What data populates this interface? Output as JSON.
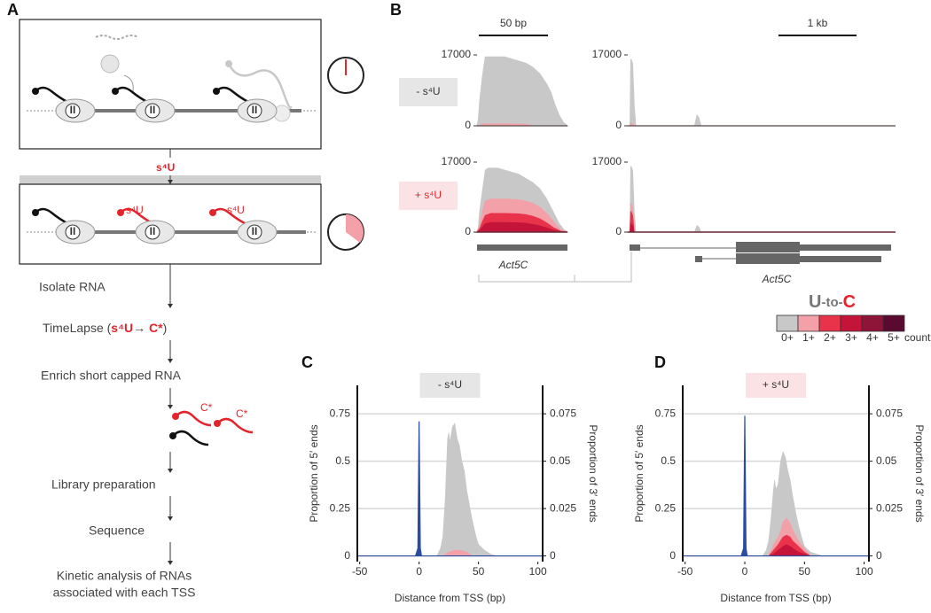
{
  "panel_labels": [
    "A",
    "B",
    "C",
    "D"
  ],
  "workflow": {
    "pol_label": "II",
    "treatment": "s⁴U",
    "new_rna_label": "s⁴U",
    "steps": [
      "Isolate RNA",
      "Enrich short capped RNA",
      "Library preparation",
      "Sequence"
    ],
    "timelapse": {
      "name": "TimeLapse (",
      "reactant": "s⁴U",
      "arrow": "→ ",
      "product": "C*",
      "close": ")"
    },
    "converted_label": "C*",
    "final_step": [
      "Kinetic analysis of RNAs",
      "associated with each TSS"
    ]
  },
  "browser": {
    "scale_bars": [
      "50 bp",
      "1 kb"
    ],
    "conditions": [
      "- s⁴U",
      "+ s⁴U"
    ],
    "gene": "Act5C",
    "legend": {
      "title_parts": [
        "U",
        "-to-",
        "C"
      ],
      "labels": [
        "0+",
        "1+",
        "2+",
        "3+",
        "4+",
        "5+"
      ],
      "colors": [
        "#c8c8c8",
        "#f4a0a8",
        "#e8334a",
        "#c4143a",
        "#8e1537",
        "#5a0a2e"
      ],
      "unit": "count"
    }
  },
  "chart_data": [
    {
      "type": "area",
      "xlim": [
        0,
        65
      ],
      "ylim": [
        0,
        17000
      ],
      "yticks": [
        0,
        17000
      ],
      "series": [
        {
          "color": "#c8c8c8",
          "x": [
            0,
            1,
            2,
            4,
            6,
            8,
            10,
            15,
            20,
            25,
            30,
            35,
            40,
            45,
            50,
            53,
            56,
            59,
            62,
            65
          ],
          "values": [
            0,
            1500,
            6000,
            12000,
            16500,
            16500,
            16500,
            16500,
            16500,
            16000,
            15500,
            15000,
            14000,
            12500,
            10000,
            8000,
            5000,
            2500,
            800,
            0
          ]
        },
        {
          "color": "#f4a0a8",
          "x": [
            0,
            2,
            4,
            30,
            35,
            40,
            65
          ],
          "values": [
            0,
            0,
            400,
            400,
            300,
            0,
            0
          ]
        }
      ]
    },
    {
      "type": "area",
      "xlim": [
        0,
        3.4
      ],
      "ylim": [
        0,
        17000
      ],
      "yticks": [
        0,
        17000
      ],
      "series": [
        {
          "color": "#c8c8c8",
          "x": [
            0,
            0.03,
            0.04,
            0.06,
            0.08,
            0.1,
            0.85,
            0.88,
            0.9,
            0.93,
            3.4
          ],
          "values": [
            0,
            0,
            16000,
            15000,
            5000,
            0,
            0,
            2500,
            2000,
            0,
            0
          ]
        },
        {
          "color": "#f4a0a8",
          "x": [
            0,
            0.03,
            0.04,
            0.06,
            0.08,
            3.4
          ],
          "values": [
            0,
            0,
            600,
            400,
            0,
            0
          ]
        }
      ]
    },
    {
      "type": "area",
      "xlim": [
        0,
        65
      ],
      "ylim": [
        0,
        17000
      ],
      "yticks": [
        0,
        17000
      ],
      "series": [
        {
          "color": "#c8c8c8",
          "x": [
            0,
            1,
            2,
            4,
            6,
            8,
            10,
            15,
            20,
            25,
            30,
            35,
            40,
            45,
            50,
            53,
            56,
            59,
            62,
            65
          ],
          "values": [
            0,
            1000,
            5000,
            10000,
            15000,
            15500,
            15500,
            15500,
            15000,
            14500,
            14000,
            13000,
            12000,
            10500,
            8000,
            6000,
            4000,
            2000,
            700,
            0
          ]
        },
        {
          "color": "#f4a0a8",
          "x": [
            0,
            2,
            4,
            6,
            10,
            20,
            30,
            35,
            40,
            45,
            50,
            55,
            60,
            65
          ],
          "values": [
            0,
            1500,
            5000,
            7500,
            8000,
            8000,
            7800,
            7500,
            7000,
            6000,
            4500,
            2500,
            500,
            0
          ]
        },
        {
          "color": "#e8334a",
          "x": [
            0,
            2,
            4,
            6,
            10,
            20,
            30,
            35,
            40,
            45,
            50,
            55,
            60,
            65
          ],
          "values": [
            0,
            800,
            2500,
            4000,
            4500,
            4500,
            4400,
            4200,
            3800,
            3200,
            2200,
            1000,
            200,
            0
          ]
        },
        {
          "color": "#c4143a",
          "x": [
            0,
            2,
            4,
            6,
            10,
            20,
            30,
            35,
            40,
            45,
            50,
            55,
            60,
            65
          ],
          "values": [
            0,
            400,
            1200,
            2000,
            2300,
            2300,
            2200,
            2100,
            1800,
            1500,
            1000,
            400,
            100,
            0
          ]
        }
      ]
    },
    {
      "type": "area",
      "xlim": [
        0,
        3.4
      ],
      "ylim": [
        0,
        17000
      ],
      "yticks": [
        0,
        17000
      ],
      "series": [
        {
          "color": "#c8c8c8",
          "x": [
            0,
            0.03,
            0.04,
            0.06,
            0.08,
            0.1,
            0.85,
            0.88,
            0.9,
            0.93,
            3.4
          ],
          "values": [
            0,
            0,
            16000,
            15000,
            5000,
            0,
            0,
            1500,
            1200,
            0,
            0
          ]
        },
        {
          "color": "#f4a0a8",
          "x": [
            0,
            0.03,
            0.04,
            0.06,
            0.08,
            3.4
          ],
          "values": [
            0,
            0,
            7000,
            6000,
            0,
            0
          ]
        },
        {
          "color": "#e8334a",
          "x": [
            0,
            0.03,
            0.04,
            0.06,
            0.08,
            3.4
          ],
          "values": [
            0,
            0,
            5000,
            4000,
            0,
            0
          ]
        },
        {
          "color": "#c4143a",
          "x": [
            0,
            0.03,
            0.04,
            0.06,
            0.08,
            3.4
          ],
          "values": [
            0,
            0,
            2000,
            1500,
            0,
            0
          ]
        }
      ]
    },
    {
      "type": "area",
      "title": "- s⁴U",
      "xlabel": "Distance from TSS (bp)",
      "ylabel": "Proportion of 5′ ends",
      "y2label": "Proportion of 3′ ends",
      "xlim": [
        -52,
        104
      ],
      "xticks": [
        -50,
        0,
        50,
        100
      ],
      "ylim": [
        -0.03,
        0.9
      ],
      "yticks": [
        0,
        0.25,
        0.5,
        0.75
      ],
      "y2lim": [
        -0.003,
        0.09
      ],
      "y2ticks": [
        0,
        0.025,
        0.05,
        0.075
      ],
      "grid": true,
      "series": [
        {
          "color": "#c8c8c8",
          "axis": "y2",
          "x": [
            -52,
            15,
            18,
            20,
            22,
            24,
            25,
            26,
            28,
            30,
            32,
            34,
            36,
            38,
            40,
            42,
            45,
            48,
            50,
            55,
            60,
            65,
            104
          ],
          "values": [
            0,
            0,
            0.004,
            0.01,
            0.03,
            0.062,
            0.065,
            0.06,
            0.068,
            0.07,
            0.062,
            0.058,
            0.05,
            0.045,
            0.035,
            0.028,
            0.018,
            0.01,
            0.006,
            0.003,
            0.001,
            0,
            0
          ]
        },
        {
          "color": "#f4a0a8",
          "axis": "y2",
          "x": [
            -52,
            20,
            25,
            30,
            35,
            40,
            45,
            104
          ],
          "values": [
            0,
            0,
            0.002,
            0.003,
            0.003,
            0.002,
            0,
            0
          ]
        },
        {
          "color": "#2b4ca0",
          "x": [
            -52,
            -3,
            -1,
            0,
            1,
            2,
            104
          ],
          "values": [
            0,
            0,
            0.04,
            0.71,
            0.04,
            0,
            0
          ]
        }
      ]
    },
    {
      "type": "area",
      "title": "+ s⁴U",
      "xlabel": "Distance from TSS (bp)",
      "ylabel": "Proportion of 5′ ends",
      "y2label": "Proportion of 3′ ends",
      "xlim": [
        -52,
        104
      ],
      "xticks": [
        -50,
        0,
        50,
        100
      ],
      "ylim": [
        -0.03,
        0.9
      ],
      "yticks": [
        0,
        0.25,
        0.5,
        0.75
      ],
      "y2lim": [
        -0.003,
        0.09
      ],
      "y2ticks": [
        0,
        0.025,
        0.05,
        0.075
      ],
      "grid": true,
      "series": [
        {
          "color": "#c8c8c8",
          "axis": "y2",
          "x": [
            -52,
            15,
            18,
            20,
            22,
            24,
            25,
            26,
            28,
            30,
            32,
            34,
            36,
            38,
            40,
            42,
            45,
            48,
            50,
            55,
            60,
            65,
            104
          ],
          "values": [
            0,
            0,
            0.003,
            0.008,
            0.02,
            0.035,
            0.04,
            0.035,
            0.038,
            0.05,
            0.055,
            0.052,
            0.045,
            0.04,
            0.032,
            0.025,
            0.016,
            0.009,
            0.005,
            0.002,
            0.001,
            0,
            0
          ]
        },
        {
          "color": "#f4a0a8",
          "axis": "y2",
          "x": [
            -52,
            20,
            24,
            28,
            30,
            32,
            35,
            38,
            40,
            45,
            50,
            55,
            104
          ],
          "values": [
            0,
            0,
            0.006,
            0.01,
            0.013,
            0.018,
            0.02,
            0.017,
            0.014,
            0.008,
            0.004,
            0,
            0
          ]
        },
        {
          "color": "#e8334a",
          "axis": "y2",
          "x": [
            -52,
            20,
            24,
            28,
            30,
            32,
            35,
            38,
            40,
            45,
            50,
            55,
            104
          ],
          "values": [
            0,
            0,
            0.003,
            0.006,
            0.008,
            0.01,
            0.011,
            0.01,
            0.008,
            0.005,
            0.002,
            0,
            0
          ]
        },
        {
          "color": "#c4143a",
          "axis": "y2",
          "x": [
            -52,
            20,
            24,
            28,
            30,
            32,
            35,
            38,
            40,
            45,
            50,
            55,
            104
          ],
          "values": [
            0,
            0,
            0.001,
            0.003,
            0.004,
            0.005,
            0.006,
            0.005,
            0.004,
            0.002,
            0.001,
            0,
            0
          ]
        },
        {
          "color": "#2b4ca0",
          "x": [
            -52,
            -3,
            -1,
            0,
            1,
            2,
            104
          ],
          "values": [
            0,
            0,
            0.04,
            0.74,
            0.04,
            0,
            0
          ]
        }
      ]
    }
  ]
}
